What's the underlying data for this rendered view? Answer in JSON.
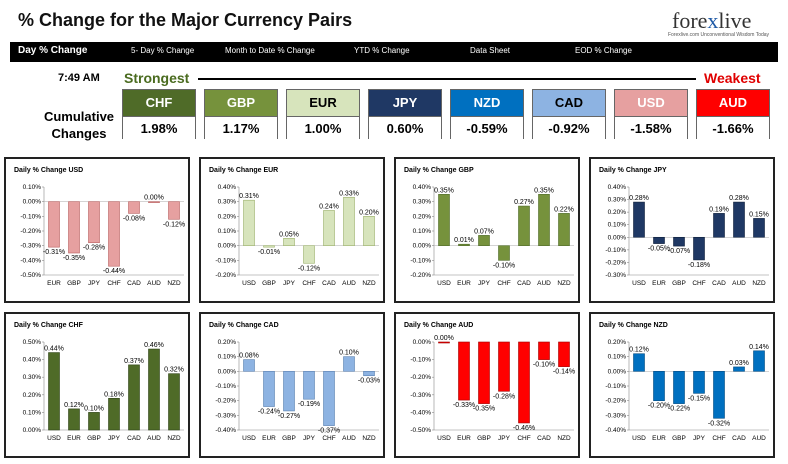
{
  "header": {
    "title": "% Change for the Major Currency Pairs",
    "logo_prefix": "fore",
    "logo_x": "x",
    "logo_suffix": "live",
    "logo_tagline": "Forexlive.com Unconventional Wisdom Today"
  },
  "nav": {
    "items": [
      "Day % Change",
      "5- Day % Change",
      "Month to Date % Change",
      "YTD % Change",
      "Data Sheet",
      "EOD % Change"
    ]
  },
  "ranking": {
    "time": "7:49 AM",
    "strongest_label": "Strongest",
    "weakest_label": "Weakest",
    "cumulative_label_line1": "Cumulative",
    "cumulative_label_line2": "Changes",
    "currencies": [
      {
        "code": "CHF",
        "value": "1.98%",
        "bg": "#4f6b28",
        "fg": "#ffffff"
      },
      {
        "code": "GBP",
        "value": "1.17%",
        "bg": "#76923c",
        "fg": "#ffffff"
      },
      {
        "code": "EUR",
        "value": "1.00%",
        "bg": "#d7e4bc",
        "fg": "#000000"
      },
      {
        "code": "JPY",
        "value": "0.60%",
        "bg": "#1f3864",
        "fg": "#ffffff"
      },
      {
        "code": "NZD",
        "value": "-0.59%",
        "bg": "#0070c0",
        "fg": "#ffffff"
      },
      {
        "code": "CAD",
        "value": "-0.92%",
        "bg": "#8db3e2",
        "fg": "#000000"
      },
      {
        "code": "USD",
        "value": "-1.58%",
        "bg": "#e6a0a0",
        "fg": "#ffffff"
      },
      {
        "code": "AUD",
        "value": "-1.66%",
        "bg": "#ff0000",
        "fg": "#ffffff"
      }
    ]
  },
  "chart_data": [
    {
      "type": "bar",
      "title": "Daily % Change USD",
      "categories": [
        "EUR",
        "GBP",
        "JPY",
        "CHF",
        "CAD",
        "AUD",
        "NZD"
      ],
      "values": [
        -0.31,
        -0.35,
        -0.28,
        -0.44,
        -0.08,
        0.0,
        -0.12
      ],
      "labels": [
        "-0.31%",
        "-0.35%",
        "-0.28%",
        "-0.44%",
        "-0.08%",
        "0.00%",
        "-0.12%"
      ],
      "ylim": [
        -0.5,
        0.1
      ],
      "ticks": [
        0.1,
        0.0,
        -0.1,
        -0.2,
        -0.3,
        -0.4,
        -0.5
      ],
      "color": "#e6a0a0",
      "dark": "#b86060"
    },
    {
      "type": "bar",
      "title": "Daily % Change EUR",
      "categories": [
        "USD",
        "GBP",
        "JPY",
        "CHF",
        "CAD",
        "AUD",
        "NZD"
      ],
      "values": [
        0.31,
        -0.01,
        0.05,
        -0.12,
        0.24,
        0.33,
        0.2
      ],
      "labels": [
        "0.31%",
        "-0.01%",
        "0.05%",
        "-0.12%",
        "0.24%",
        "0.33%",
        "0.20%"
      ],
      "ylim": [
        -0.2,
        0.4
      ],
      "ticks": [
        0.4,
        0.3,
        0.2,
        0.1,
        0.0,
        -0.1,
        -0.2
      ],
      "color": "#d7e4bc",
      "dark": "#9bb06a"
    },
    {
      "type": "bar",
      "title": "Daily % Change GBP",
      "categories": [
        "USD",
        "EUR",
        "JPY",
        "CHF",
        "CAD",
        "AUD",
        "NZD"
      ],
      "values": [
        0.35,
        0.01,
        0.07,
        -0.1,
        0.27,
        0.35,
        0.22
      ],
      "labels": [
        "0.35%",
        "0.01%",
        "0.07%",
        "-0.10%",
        "0.27%",
        "0.35%",
        "0.22%"
      ],
      "ylim": [
        -0.2,
        0.4
      ],
      "ticks": [
        0.4,
        0.3,
        0.2,
        0.1,
        0.0,
        -0.1,
        -0.2
      ],
      "color": "#76923c",
      "dark": "#4f6b28"
    },
    {
      "type": "bar",
      "title": "Daily % Change JPY",
      "categories": [
        "USD",
        "EUR",
        "GBP",
        "CHF",
        "CAD",
        "AUD",
        "NZD"
      ],
      "values": [
        0.28,
        -0.05,
        -0.07,
        -0.18,
        0.19,
        0.28,
        0.15
      ],
      "labels": [
        "0.28%",
        "-0.05%",
        "-0.07%",
        "-0.18%",
        "0.19%",
        "0.28%",
        "0.15%"
      ],
      "ylim": [
        -0.3,
        0.4
      ],
      "ticks": [
        0.4,
        0.3,
        0.2,
        0.1,
        0.0,
        -0.1,
        -0.2,
        -0.3
      ],
      "color": "#1f3864",
      "dark": "#0f1f3a"
    },
    {
      "type": "bar",
      "title": "Daily % Change CHF",
      "categories": [
        "USD",
        "EUR",
        "GBP",
        "JPY",
        "CAD",
        "AUD",
        "NZD"
      ],
      "values": [
        0.44,
        0.12,
        0.1,
        0.18,
        0.37,
        0.46,
        0.32
      ],
      "labels": [
        "0.44%",
        "0.12%",
        "0.10%",
        "0.18%",
        "0.37%",
        "0.46%",
        "0.32%"
      ],
      "ylim": [
        0.0,
        0.5
      ],
      "ticks": [
        0.5,
        0.4,
        0.3,
        0.2,
        0.1,
        0.0
      ],
      "color": "#4f6b28",
      "dark": "#2f4418"
    },
    {
      "type": "bar",
      "title": "Daily % Change CAD",
      "categories": [
        "USD",
        "EUR",
        "GBP",
        "JPY",
        "CHF",
        "AUD",
        "NZD"
      ],
      "values": [
        0.08,
        -0.24,
        -0.27,
        -0.19,
        -0.37,
        0.1,
        -0.03
      ],
      "labels": [
        "0.08%",
        "-0.24%",
        "-0.27%",
        "-0.19%",
        "-0.37%",
        "0.10%",
        "-0.03%"
      ],
      "ylim": [
        -0.4,
        0.2
      ],
      "ticks": [
        0.2,
        0.1,
        0.0,
        -0.1,
        -0.2,
        -0.3,
        -0.4
      ],
      "color": "#8db3e2",
      "dark": "#5a80b0"
    },
    {
      "type": "bar",
      "title": "Daily % Change AUD",
      "categories": [
        "USD",
        "EUR",
        "GBP",
        "JPY",
        "CHF",
        "CAD",
        "NZD"
      ],
      "values": [
        0.0,
        -0.33,
        -0.35,
        -0.28,
        -0.46,
        -0.1,
        -0.14
      ],
      "labels": [
        "0.00%",
        "-0.33%",
        "-0.35%",
        "-0.28%",
        "-0.46%",
        "-0.10%",
        "-0.14%"
      ],
      "ylim": [
        -0.5,
        0.0
      ],
      "ticks": [
        0.0,
        -0.1,
        -0.2,
        -0.3,
        -0.4,
        -0.5
      ],
      "color": "#ff0000",
      "dark": "#a00000"
    },
    {
      "type": "bar",
      "title": "Daily % Change NZD",
      "categories": [
        "USD",
        "EUR",
        "GBP",
        "JPY",
        "CHF",
        "CAD",
        "AUD"
      ],
      "values": [
        0.12,
        -0.2,
        -0.22,
        -0.15,
        -0.32,
        0.03,
        0.14
      ],
      "labels": [
        "0.12%",
        "-0.20%",
        "-0.22%",
        "-0.15%",
        "-0.32%",
        "0.03%",
        "0.14%"
      ],
      "ylim": [
        -0.4,
        0.2
      ],
      "ticks": [
        0.2,
        0.1,
        0.0,
        -0.1,
        -0.2,
        -0.3,
        -0.4
      ],
      "color": "#0070c0",
      "dark": "#004a80"
    }
  ]
}
